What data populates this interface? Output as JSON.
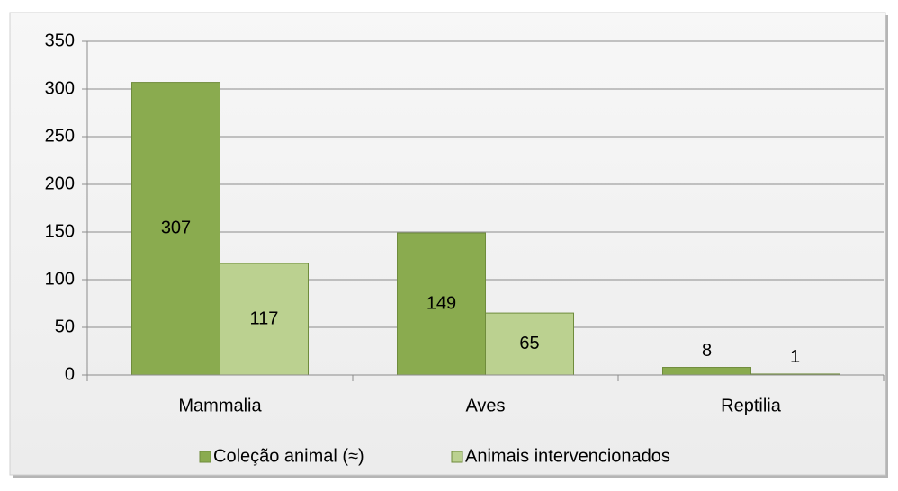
{
  "chart_data": {
    "type": "bar",
    "categories": [
      "Mammalia",
      "Aves",
      "Reptilia"
    ],
    "series": [
      {
        "name": "Coleção animal (≈)",
        "color": "#8aab4f",
        "values": [
          307,
          149,
          8
        ]
      },
      {
        "name": "Animais intervencionados",
        "color": "#bbd190",
        "values": [
          117,
          65,
          1
        ]
      }
    ],
    "ylim": [
      0,
      350
    ],
    "yticks": [
      0,
      50,
      100,
      150,
      200,
      250,
      300,
      350
    ],
    "grid": true,
    "legend": "bottom"
  }
}
